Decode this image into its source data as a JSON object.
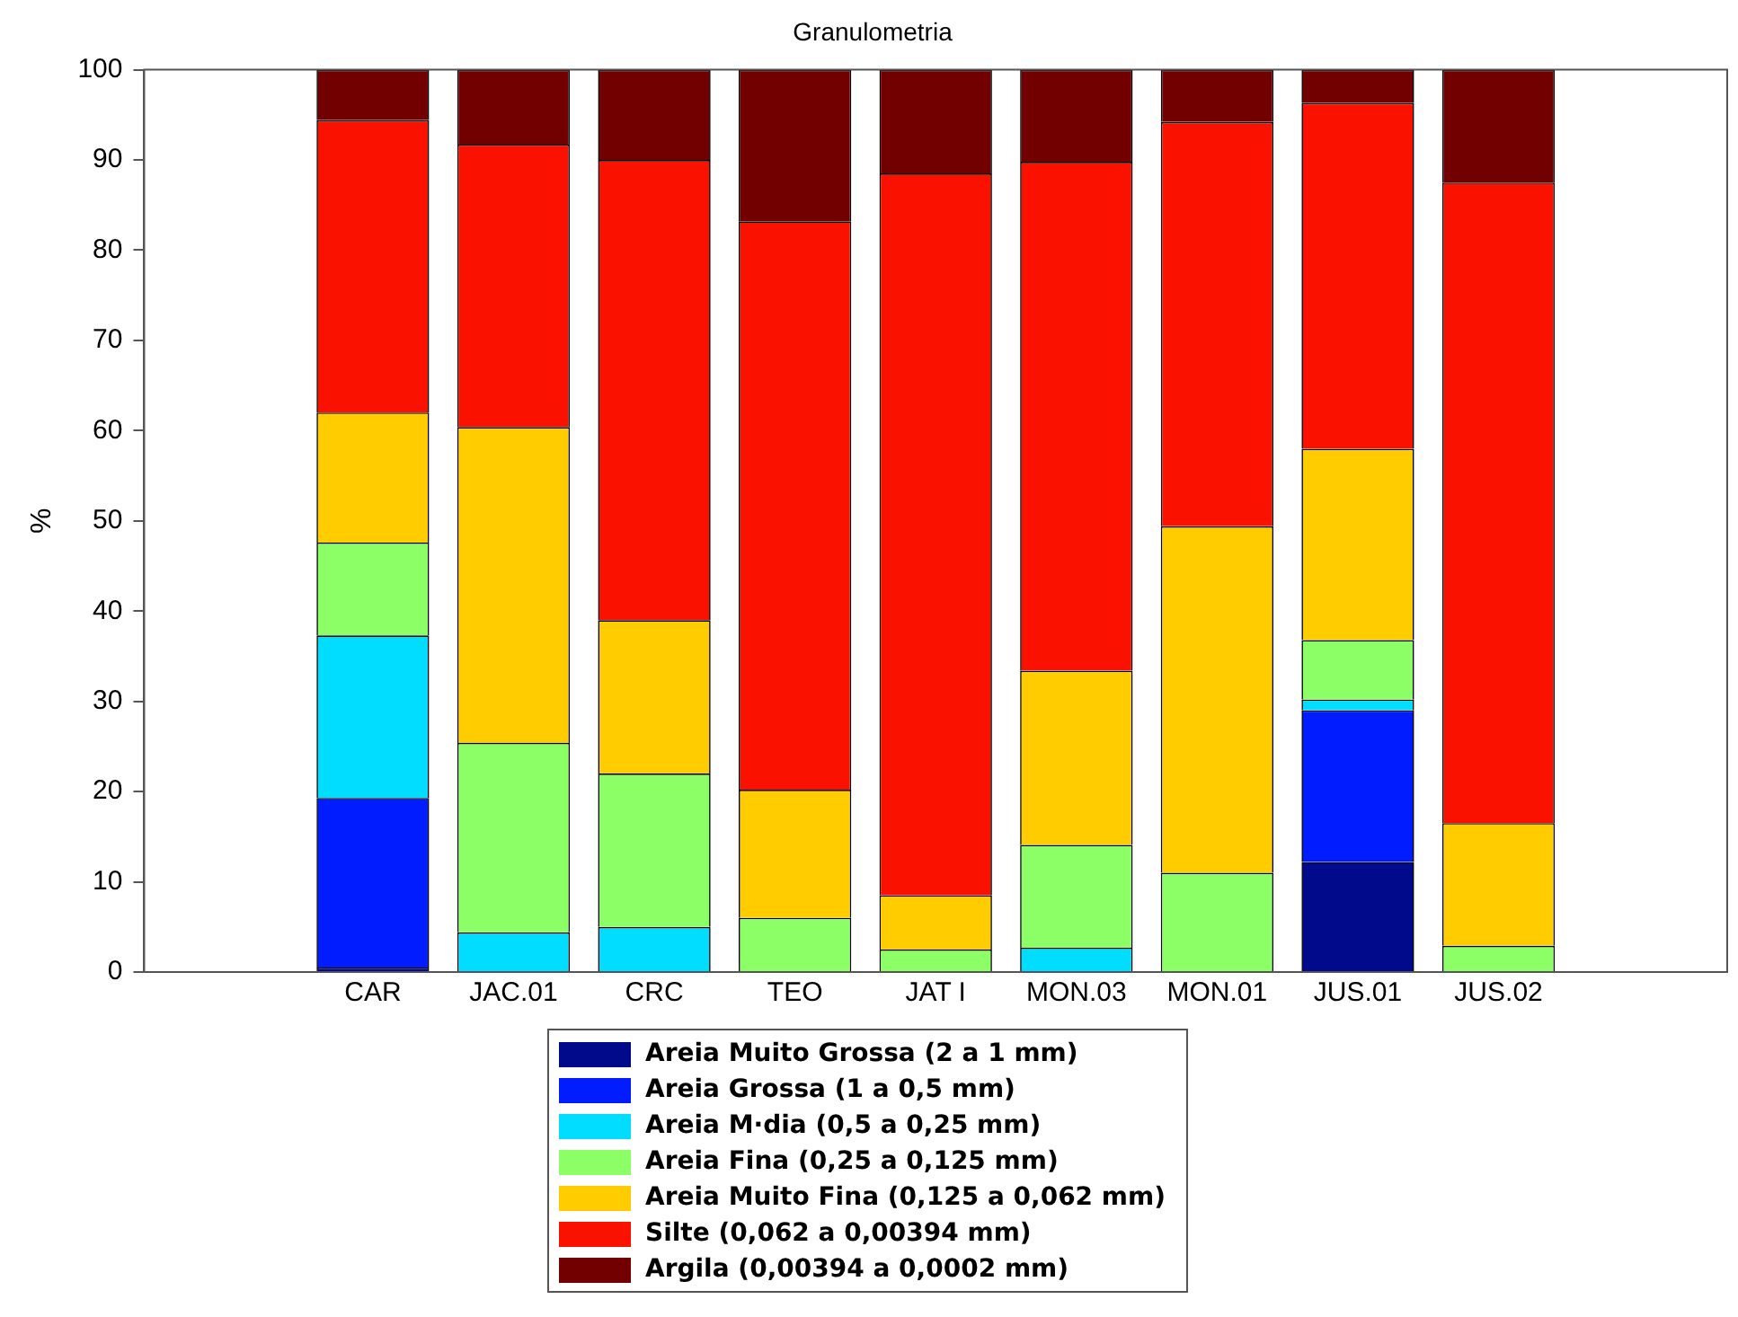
{
  "chart_data": {
    "type": "bar",
    "title": "Granulometria",
    "ylabel": "%",
    "stacked": true,
    "categories": [
      "CAR",
      "JAC.01",
      "CRC",
      "TEO",
      "JAT I",
      "MON.03",
      "MON.01",
      "JUS.01",
      "JUS.02"
    ],
    "series": [
      {
        "name": "Areia Muito Grossa (2 a 1 mm)",
        "color": "#000a8a",
        "values": [
          0.5,
          0,
          0,
          0,
          0,
          0,
          0,
          12.2,
          0
        ]
      },
      {
        "name": "Areia Grossa (1 a 0,5 mm)",
        "color": "#001cff",
        "values": [
          18.8,
          0,
          0,
          0,
          0,
          0,
          0,
          16.8,
          0
        ]
      },
      {
        "name": "Areia M·dia (0,5 a 0,25 mm)",
        "color": "#00ddff",
        "values": [
          18,
          4.4,
          5,
          0,
          0,
          2.7,
          0,
          1.2,
          0
        ]
      },
      {
        "name": "Areia Fina (0,25 a 0,125 mm)",
        "color": "#8cff66",
        "values": [
          10.3,
          21,
          17,
          6,
          2.5,
          11.4,
          11,
          6.6,
          2.9
        ]
      },
      {
        "name": "Areia Muito Fina (0,125 a 0,062 mm)",
        "color": "#ffcc00",
        "values": [
          14.4,
          35,
          17,
          14.2,
          6,
          19.3,
          38.4,
          21.2,
          13.6
        ]
      },
      {
        "name": "Silte (0,062 a 0,00394 mm)",
        "color": "#fa1100",
        "values": [
          32.4,
          31.3,
          51,
          63,
          80,
          56.4,
          44.8,
          38.3,
          71
        ]
      },
      {
        "name": "Argila (0,00394 a 0,0002 mm)",
        "color": "#730000",
        "values": [
          5.6,
          8.3,
          10,
          16.8,
          11.5,
          10.2,
          5.8,
          3.7,
          12.5
        ]
      }
    ],
    "ylim": [
      0,
      100
    ],
    "yticks": [
      0,
      10,
      20,
      30,
      40,
      50,
      60,
      70,
      80,
      90,
      100
    ],
    "grid": false,
    "legend": "bottom"
  }
}
